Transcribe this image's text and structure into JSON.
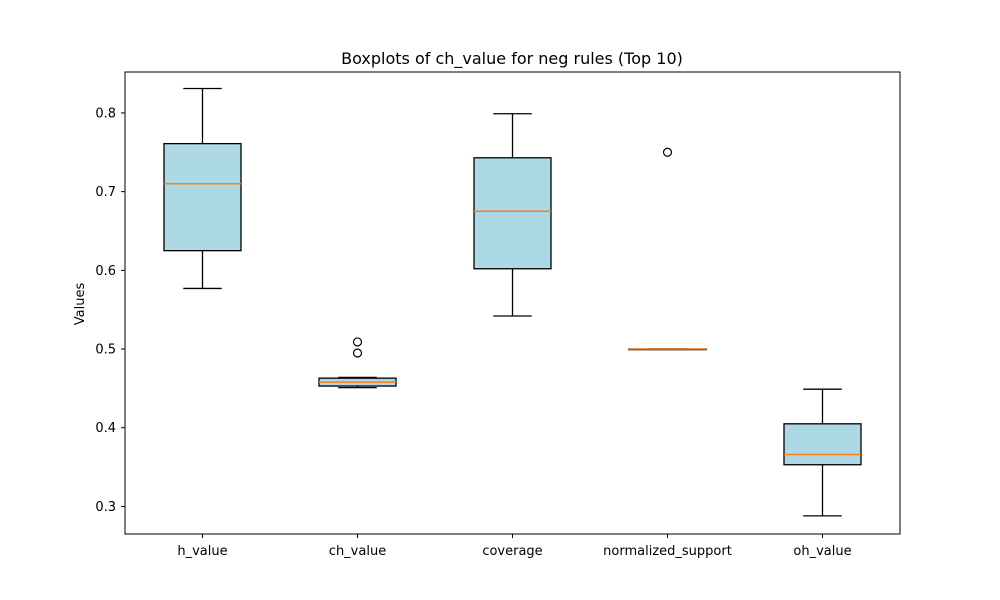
{
  "chart_data": {
    "type": "boxplot",
    "title": "Boxplots of ch_value for neg rules (Top 10)",
    "xlabel": "",
    "ylabel": "Values",
    "ylim": [
      0.265,
      0.852
    ],
    "yticks": [
      0.3,
      0.4,
      0.5,
      0.6,
      0.7,
      0.8
    ],
    "grid": false,
    "colors": {
      "box_fill": "#add8e6",
      "median": "#ff7f0e",
      "edge": "#000000"
    },
    "categories": [
      "h_value",
      "ch_value",
      "coverage",
      "normalized_support",
      "oh_value"
    ],
    "boxes": [
      {
        "label": "h_value",
        "whisker_low": 0.577,
        "q1": 0.625,
        "median": 0.71,
        "q3": 0.761,
        "whisker_high": 0.831,
        "outliers": []
      },
      {
        "label": "ch_value",
        "whisker_low": 0.451,
        "q1": 0.453,
        "median": 0.458,
        "q3": 0.463,
        "whisker_high": 0.464,
        "outliers": [
          0.495,
          0.509
        ]
      },
      {
        "label": "coverage",
        "whisker_low": 0.542,
        "q1": 0.602,
        "median": 0.675,
        "q3": 0.743,
        "whisker_high": 0.799,
        "outliers": []
      },
      {
        "label": "normalized_support",
        "whisker_low": 0.5,
        "q1": 0.5,
        "median": 0.5,
        "q3": 0.5,
        "whisker_high": 0.5,
        "outliers": [
          0.75
        ]
      },
      {
        "label": "oh_value",
        "whisker_low": 0.288,
        "q1": 0.353,
        "median": 0.366,
        "q3": 0.405,
        "whisker_high": 0.449,
        "outliers": []
      }
    ]
  }
}
